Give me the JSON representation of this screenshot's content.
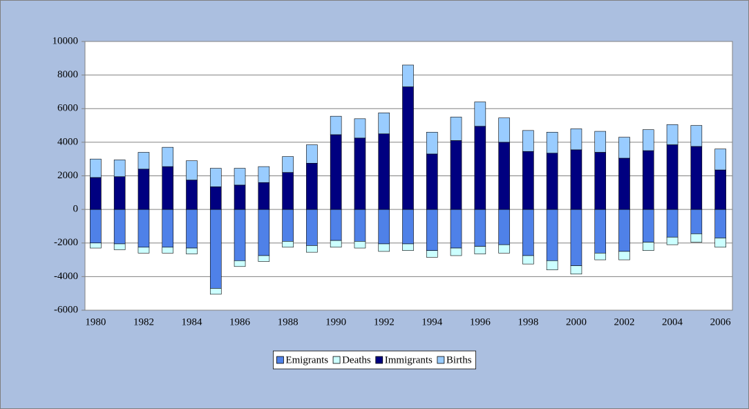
{
  "chart_data": {
    "type": "stacked_bar",
    "categories": [
      "1980",
      null,
      "1982",
      null,
      "1984",
      null,
      "1986",
      null,
      "1988",
      null,
      "1990",
      null,
      "1992",
      null,
      "1994",
      null,
      "1996",
      null,
      "1998",
      null,
      "2000",
      null,
      "2002",
      null,
      "2004",
      null,
      "2006"
    ],
    "series": [
      {
        "name": "Emigrants",
        "color": "#4f81e8",
        "values": [
          -2000,
          -2050,
          -2250,
          -2250,
          -2300,
          -4700,
          -3050,
          -2750,
          -1900,
          -2150,
          -1850,
          -1900,
          -2050,
          -2050,
          -2450,
          -2300,
          -2200,
          -2100,
          -2750,
          -3050,
          -3350,
          -2600,
          -2500,
          -1950,
          -1650,
          -1450,
          -1700
        ]
      },
      {
        "name": "Deaths",
        "color": "#ccffff",
        "values": [
          -300,
          -350,
          -350,
          -350,
          -350,
          -350,
          -350,
          -350,
          -350,
          -400,
          -400,
          -400,
          -450,
          -400,
          -400,
          -450,
          -450,
          -500,
          -500,
          -550,
          -500,
          -400,
          -500,
          -500,
          -450,
          -500,
          -550
        ]
      },
      {
        "name": "Immigrants",
        "color": "#000080",
        "values": [
          1900,
          1950,
          2400,
          2550,
          1750,
          1350,
          1450,
          1600,
          2200,
          2750,
          4450,
          4250,
          4500,
          7300,
          3300,
          4100,
          4950,
          4000,
          3450,
          3350,
          3550,
          3400,
          3050,
          3500,
          3850,
          3750,
          2350
        ]
      },
      {
        "name": "Births",
        "color": "#99ccff",
        "values": [
          1100,
          1000,
          1000,
          1150,
          1150,
          1100,
          1000,
          950,
          950,
          1100,
          1100,
          1150,
          1250,
          1300,
          1300,
          1400,
          1450,
          1450,
          1250,
          1250,
          1250,
          1250,
          1250,
          1250,
          1200,
          1250,
          1250
        ]
      }
    ],
    "ylim": [
      -6000,
      10000
    ],
    "yticks": [
      -6000,
      -4000,
      -2000,
      0,
      2000,
      4000,
      6000,
      8000,
      10000
    ],
    "grid": true,
    "legend": "bottom"
  }
}
